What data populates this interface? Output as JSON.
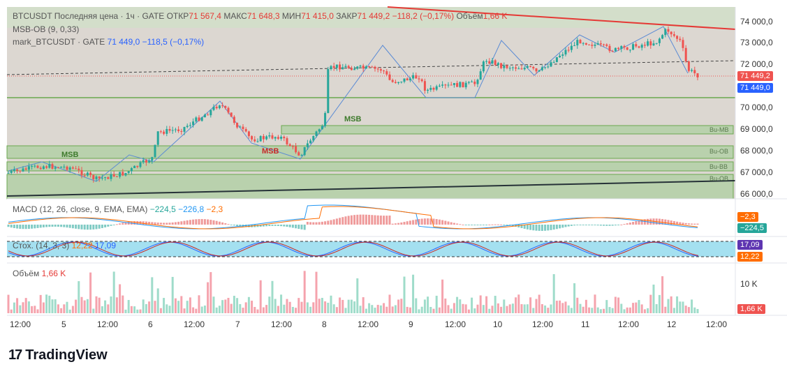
{
  "header": {
    "symbol": "BTCUSDT",
    "desc": "Последняя цена",
    "interval": "1ч",
    "exchange": "GATE",
    "open_label": "ОТКР",
    "open": "71 567,4",
    "high_label": "МАКС",
    "high": "71 648,3",
    "low_label": "МИН",
    "low": "71 415,0",
    "close_label": "ЗАКР",
    "close": "71 449,2",
    "change": "−118,2 (−0,17%)",
    "vol_label": "Объём",
    "vol": "1,66 K"
  },
  "indicators": {
    "msb_ob": "MSB-OB (9, 0,33)",
    "mark_name": "mark_BTCUSDT · GATE",
    "mark_value": "71 449,0",
    "mark_change": "−118,5 (−0,17%)"
  },
  "price_axis": [
    "74 000,0",
    "73 000,0",
    "72 000,0",
    "70 000,0",
    "69 000,0",
    "68 000,0",
    "67 000,0",
    "66 000,0"
  ],
  "price_axis_partial": "70 000,0",
  "price_tags": {
    "last": "71 449,2",
    "mark": "71 449,0"
  },
  "chart_labels": {
    "msb": "MSB",
    "zones": [
      "Bu-MB",
      "Bu-OB",
      "Bu-BB",
      "Bu-OB"
    ]
  },
  "macd": {
    "title": "MACD (12, 26, close, 9, EMA, EMA)",
    "hist": "−224,5",
    "macd": "−226,8",
    "signal": "−2,3",
    "tag_signal": "−2,3",
    "tag_hist": "−224,5"
  },
  "stoch": {
    "title": "Стох. (14, 3, 3)",
    "k": "12,22",
    "d": "17,09",
    "tag_d": "17,09",
    "tag_k": "12,22"
  },
  "volume": {
    "title": "Объём",
    "value": "1,66 K",
    "axis_label": "10 K",
    "tag": "1,66 K"
  },
  "time_axis": [
    "12:00",
    "5",
    "12:00",
    "6",
    "12:00",
    "7",
    "12:00",
    "8",
    "12:00",
    "9",
    "12:00",
    "10",
    "12:00",
    "11",
    "12:00",
    "12",
    "12:00"
  ],
  "brand": "TradingView",
  "colors": {
    "up": "#26a69a",
    "down": "#ef5350",
    "zone": "#6aa84f",
    "bg": "#dcd7d1"
  }
}
